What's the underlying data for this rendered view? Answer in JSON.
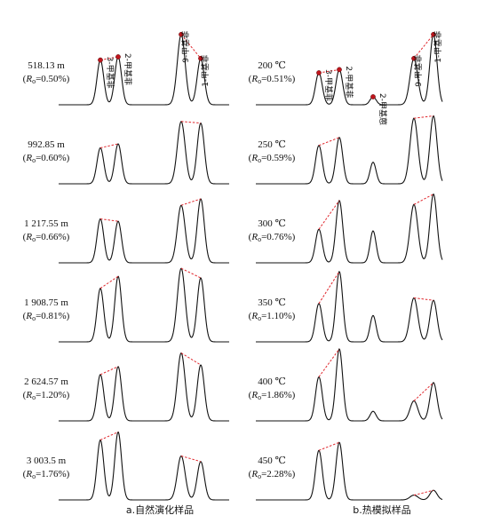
{
  "chart_data": [
    {
      "type": "line",
      "panel": "a",
      "caption": "a.自然演化样品",
      "peak_labels": [
        "3-甲基菲",
        "2-甲基菲",
        "9-甲基菲",
        "1-甲基菲"
      ],
      "samples": [
        {
          "depth": "518.13 m",
          "ro": "=0.50%",
          "peaks": [
            0.56,
            0.6,
            0.88,
            0.58
          ]
        },
        {
          "depth": "992.85 m",
          "ro": "=0.60%",
          "peaks": [
            0.45,
            0.5,
            0.78,
            0.76
          ]
        },
        {
          "depth": "1 217.55 m",
          "ro": "=0.66%",
          "peaks": [
            0.55,
            0.52,
            0.72,
            0.8
          ]
        },
        {
          "depth": "1 908.75 m",
          "ro": "=0.81%",
          "peaks": [
            0.67,
            0.82,
            0.92,
            0.8
          ]
        },
        {
          "depth": "2 624.57 m",
          "ro": "=1.20%",
          "peaks": [
            0.58,
            0.68,
            0.85,
            0.7
          ]
        },
        {
          "depth": "3 003.5 m",
          "ro": "=1.76%",
          "peaks": [
            0.75,
            0.85,
            0.55,
            0.48
          ]
        }
      ]
    },
    {
      "type": "line",
      "panel": "b",
      "caption": "b.热模拟样品",
      "peak_labels": [
        "3-甲基菲",
        "2-甲基菲",
        "2-甲基蒽",
        "9-甲基菲",
        "1-甲基菲"
      ],
      "samples": [
        {
          "temp": "200 ℃",
          "ro": "=0.51%",
          "peaks": [
            0.4,
            0.44,
            0.1,
            0.58,
            0.88
          ]
        },
        {
          "temp": "250 ℃",
          "ro": "=0.59%",
          "peaks": [
            0.48,
            0.58,
            0.27,
            0.82,
            0.85
          ]
        },
        {
          "temp": "300 ℃",
          "ro": "=0.76%",
          "peaks": [
            0.42,
            0.78,
            0.4,
            0.73,
            0.86
          ]
        },
        {
          "temp": "350 ℃",
          "ro": "=1.10%",
          "peaks": [
            0.48,
            0.88,
            0.33,
            0.55,
            0.52
          ]
        },
        {
          "temp": "400 ℃",
          "ro": "=1.86%",
          "peaks": [
            0.55,
            0.9,
            0.12,
            0.25,
            0.48
          ]
        },
        {
          "temp": "450 ℃",
          "ro": "=2.28%",
          "peaks": [
            0.62,
            0.72,
            0.0,
            0.06,
            0.12
          ]
        }
      ]
    }
  ],
  "colors": {
    "trace": "#111111",
    "link": "#e0282e",
    "marker": "#c0151c"
  }
}
